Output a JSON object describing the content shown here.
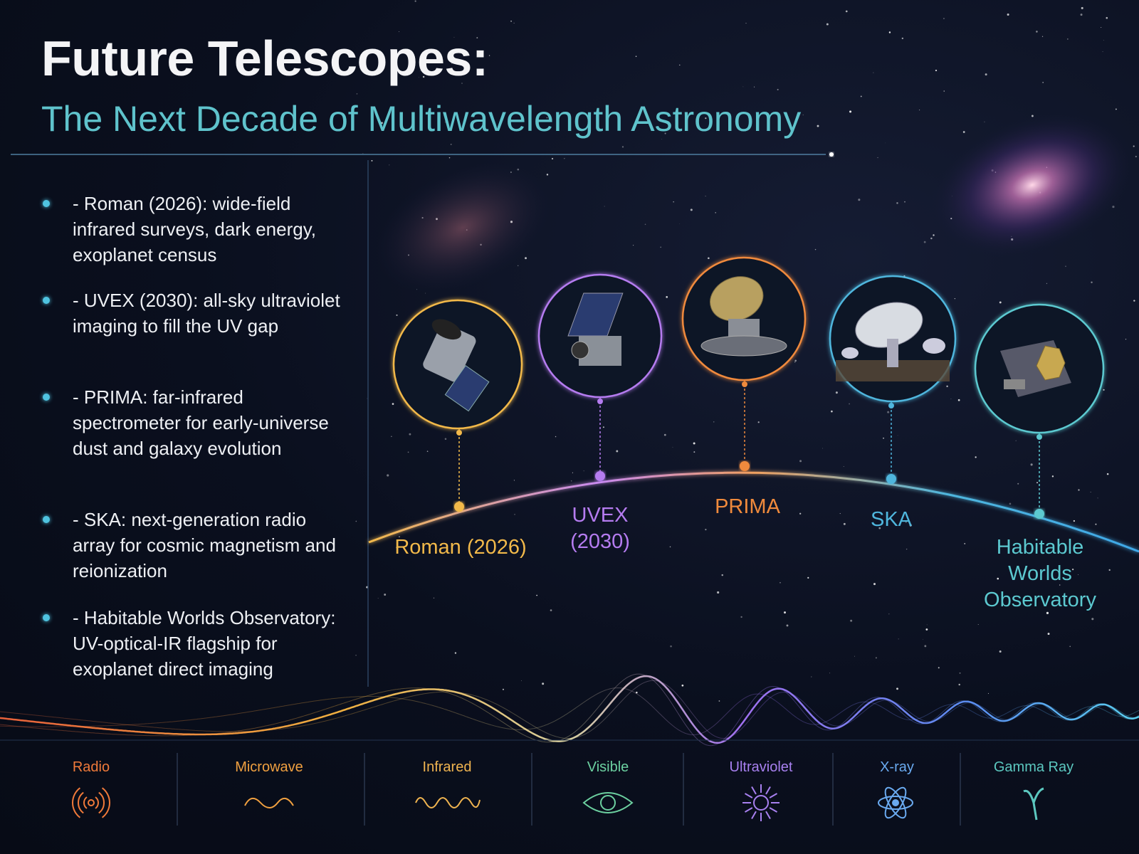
{
  "header": {
    "title": "Future Telescopes:",
    "subtitle": "The Next Decade of Multiwavelength Astronomy"
  },
  "missions": [
    {
      "text": "- Roman (2026): wide-field infrared surveys, dark energy, exoplanet census"
    },
    {
      "text": "- UVEX (2030): all-sky ultraviolet imaging to fill the UV gap"
    },
    {
      "text": "- PRIMA: far-infrared spectrometer for early-universe dust and galaxy evolution"
    },
    {
      "text": "- SKA: next-generation radio array for cosmic magnetism and reionization"
    },
    {
      "text": "- Habitable Worlds Observatory: UV-optical-IR flagship for exoplanet direct imaging"
    }
  ],
  "timeline": [
    {
      "label": "Roman (2026)"
    },
    {
      "label": "UVEX (2030)"
    },
    {
      "label": "PRIMA"
    },
    {
      "label": "SKA"
    },
    {
      "label": "Habitable Worlds Observatory"
    }
  ],
  "spectrum": [
    {
      "label": "Radio"
    },
    {
      "label": "Microwave"
    },
    {
      "label": "Infrared"
    },
    {
      "label": "Visible"
    },
    {
      "label": "Ultraviolet"
    },
    {
      "label": "X-ray"
    },
    {
      "label": "Gamma Ray"
    }
  ]
}
